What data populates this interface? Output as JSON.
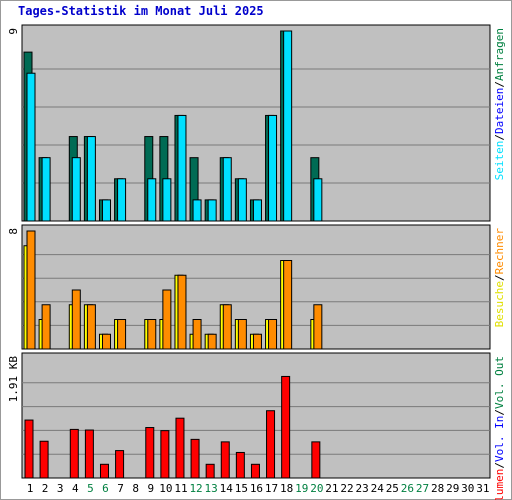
{
  "title": "Tages-Statistik im Monat Juli 2025",
  "chart_data": {
    "type": "bar",
    "categories": [
      "1",
      "2",
      "3",
      "4",
      "5",
      "6",
      "7",
      "8",
      "9",
      "10",
      "11",
      "12",
      "13",
      "14",
      "15",
      "16",
      "17",
      "18",
      "19",
      "20",
      "21",
      "22",
      "23",
      "24",
      "25",
      "26",
      "27",
      "28",
      "29",
      "30",
      "31"
    ],
    "weekend_days": [
      "5",
      "6",
      "12",
      "13",
      "19",
      "20",
      "26",
      "27"
    ],
    "colors": {
      "anfragen": "#006b54",
      "dateien": "#00e0ff",
      "seiten": "#00e0ff",
      "besuche": "#ffff00",
      "rechner": "#ff8c00",
      "volumen": "#ff0000",
      "weekday_label": "#000000",
      "weekend_label": "#008040",
      "panel_bg": "#c0c0c0"
    },
    "panels": [
      {
        "name": "requests",
        "ymax": 9,
        "ymax_label": "9",
        "legend": [
          {
            "text": "Seiten",
            "color": "#00e0ff"
          },
          {
            "text": "/",
            "color": "#000000"
          },
          {
            "text": "Dateien",
            "color": "#0000ff"
          },
          {
            "text": "/",
            "color": "#000000"
          },
          {
            "text": "Anfragen",
            "color": "#008040"
          }
        ],
        "series": [
          {
            "name": "Anfragen",
            "values": [
              8,
              3,
              0,
              4,
              4,
              1,
              2,
              0,
              4,
              4,
              5,
              3,
              1,
              3,
              2,
              1,
              5,
              9,
              0,
              3,
              0,
              0,
              0,
              0,
              0,
              0,
              0,
              0,
              0,
              0,
              0
            ]
          },
          {
            "name": "Dateien",
            "values": [
              7,
              3,
              0,
              3,
              4,
              1,
              2,
              0,
              2,
              2,
              5,
              1,
              1,
              3,
              2,
              1,
              5,
              9,
              0,
              2,
              0,
              0,
              0,
              0,
              0,
              0,
              0,
              0,
              0,
              0,
              0
            ]
          }
        ]
      },
      {
        "name": "visits",
        "ymax": 8,
        "ymax_label": "8",
        "legend": [
          {
            "text": "Besuche",
            "color": "#e0e000"
          },
          {
            "text": "/",
            "color": "#000000"
          },
          {
            "text": "Rechner",
            "color": "#ff8c00"
          }
        ],
        "series": [
          {
            "name": "Besuche",
            "values": [
              7,
              2,
              0,
              3,
              3,
              1,
              2,
              0,
              2,
              2,
              5,
              1,
              1,
              3,
              2,
              1,
              2,
              6,
              0,
              2,
              0,
              0,
              0,
              0,
              0,
              0,
              0,
              0,
              0,
              0,
              0
            ]
          },
          {
            "name": "Rechner",
            "values": [
              8,
              3,
              0,
              4,
              3,
              1,
              2,
              0,
              2,
              4,
              5,
              2,
              1,
              3,
              2,
              1,
              2,
              6,
              0,
              3,
              0,
              0,
              0,
              0,
              0,
              0,
              0,
              0,
              0,
              0,
              0
            ]
          }
        ]
      },
      {
        "name": "volume",
        "ymax": 1.91,
        "ymax_label": "1.91 KB",
        "legend": [
          {
            "text": "Volumen",
            "color": "#ff0000"
          },
          {
            "text": "/",
            "color": "#000000"
          },
          {
            "text": "Vol. In",
            "color": "#0000ff"
          },
          {
            "text": "/",
            "color": "#000000"
          },
          {
            "text": "Vol. Out",
            "color": "#008040"
          }
        ],
        "series": [
          {
            "name": "Volumen",
            "values": [
              0.93,
              0.59,
              0,
              0.78,
              0.77,
              0.22,
              0.44,
              0,
              0.81,
              0.76,
              0.96,
              0.62,
              0.22,
              0.58,
              0.41,
              0.22,
              1.08,
              1.63,
              0,
              0.58,
              0,
              0,
              0,
              0,
              0,
              0,
              0,
              0,
              0,
              0,
              0
            ]
          }
        ]
      }
    ]
  }
}
